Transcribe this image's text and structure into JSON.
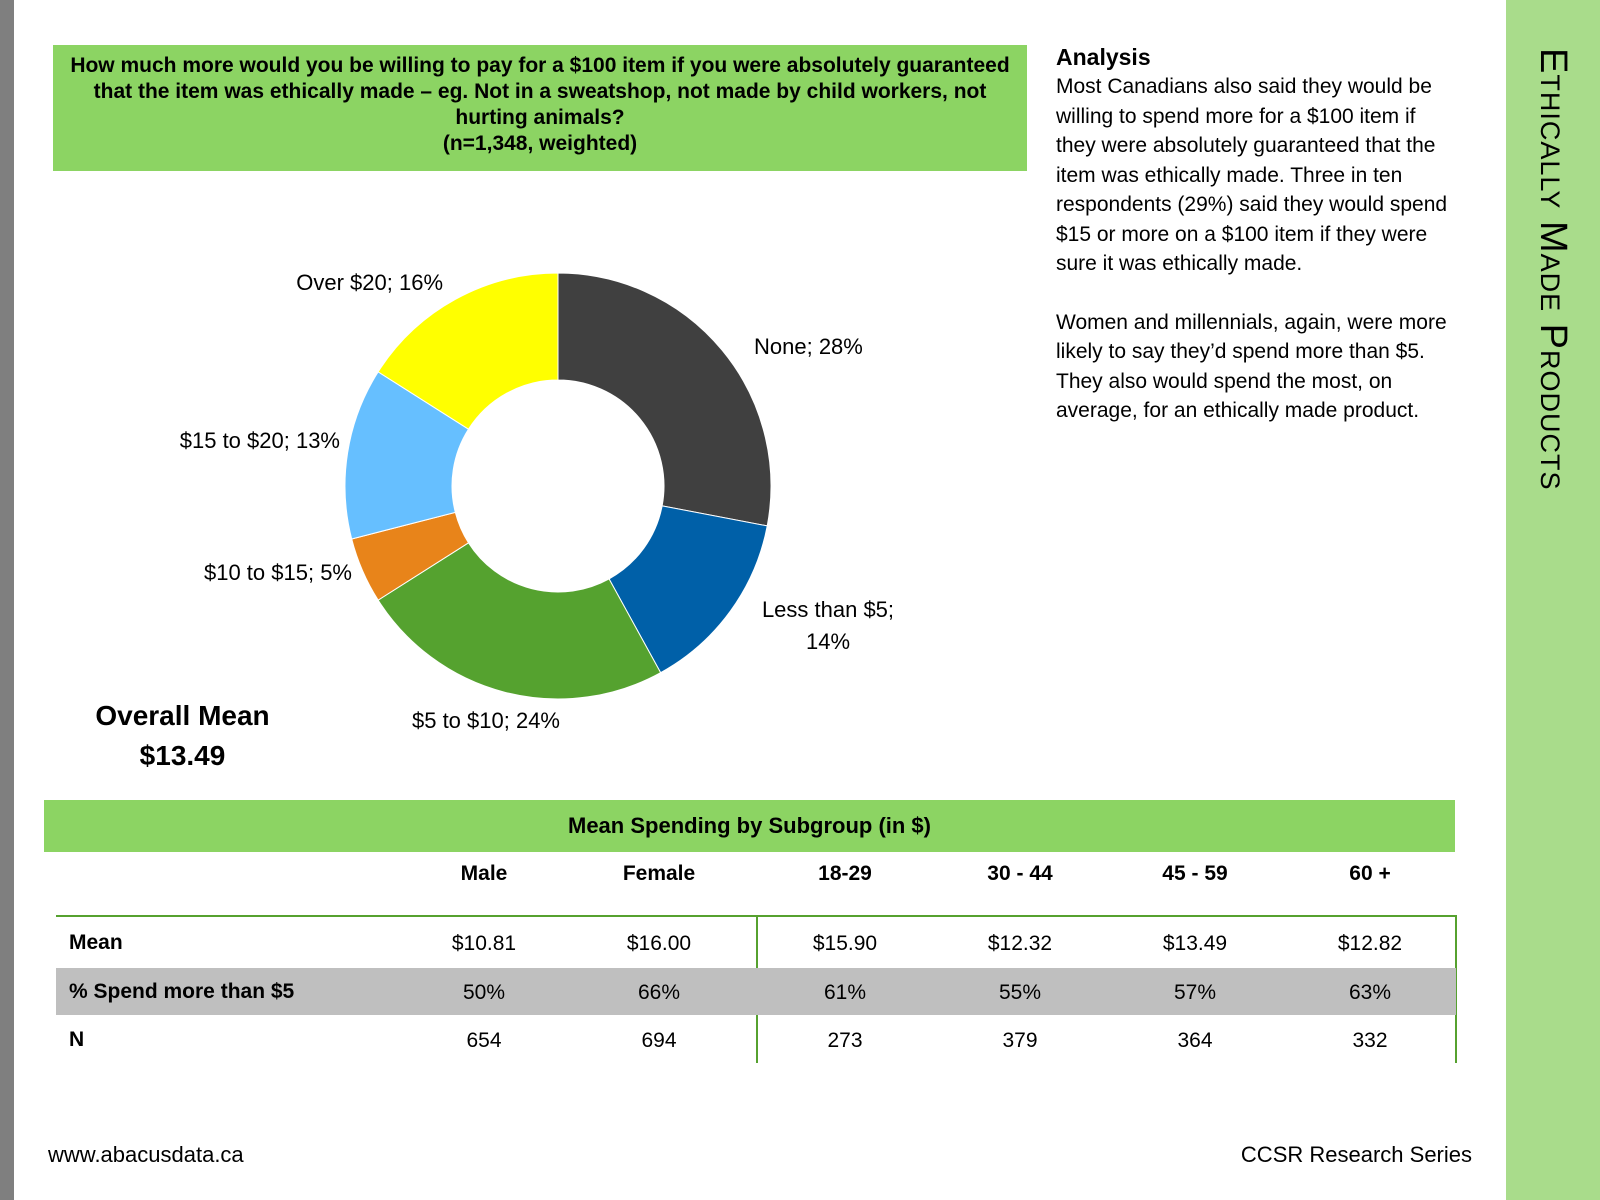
{
  "side_title": "Ethically Made Products",
  "question": {
    "text": "How much more would you be willing to pay for a $100 item if you were absolutely guaranteed that the item was ethically made – eg. Not in a sweatshop, not made by child workers, not hurting animals?",
    "sample": "(n=1,348, weighted)"
  },
  "chart_data": {
    "type": "pie",
    "variant": "donut",
    "title": "",
    "slices": [
      {
        "label": "None; 28%",
        "name": "None",
        "value": 28,
        "color": "#404040"
      },
      {
        "label": "Less than $5; 14%",
        "name": "Less than $5",
        "value": 14,
        "color": "#0060a8"
      },
      {
        "label": "$5 to $10; 24%",
        "name": "$5 to $10",
        "value": 24,
        "color": "#55a22f"
      },
      {
        "label": "$10 to $15; 5%",
        "name": "$10 to $15",
        "value": 5,
        "color": "#e8841a"
      },
      {
        "label": "$15 to $20; 13%",
        "name": "$15 to $20",
        "value": 13,
        "color": "#66bfff"
      },
      {
        "label": "Over $20; 16%",
        "name": "Over $20",
        "value": 16,
        "color": "#ffff00"
      }
    ]
  },
  "overall_mean": {
    "label": "Overall Mean",
    "value": "$13.49"
  },
  "analysis": {
    "heading": "Analysis",
    "p1": "Most Canadians also said they would be willing to spend more for a $100 item if they were absolutely guaranteed that the item was ethically made.  Three in ten respondents (29%) said they would spend $15 or more on a $100 item if they were sure it was ethically made.",
    "p2": "Women and millennials, again, were more likely to say they’d spend more than $5.  They also would spend the most, on average, for an ethically made product."
  },
  "table": {
    "title": "Mean Spending by Subgroup (in $)",
    "columns": [
      "Male",
      "Female",
      "18-29",
      "30 - 44",
      "45 - 59",
      "60 +"
    ],
    "rows": [
      {
        "label": "Mean",
        "values": [
          "$10.81",
          "$16.00",
          "$15.90",
          "$12.32",
          "$13.49",
          "$12.82"
        ]
      },
      {
        "label": "% Spend more than $5",
        "values": [
          "50%",
          "66%",
          "61%",
          "55%",
          "57%",
          "63%"
        ]
      },
      {
        "label": "N",
        "values": [
          "654",
          "694",
          "273",
          "379",
          "364",
          "332"
        ]
      }
    ]
  },
  "footer": {
    "website": "www.abacusdata.ca",
    "series": "CCSR Research Series"
  },
  "colors": {
    "green_box": "#8cd463",
    "side_panel": "#a9dc8b",
    "table_rule": "#56a12f",
    "row_shade": "#bfbfbf"
  }
}
